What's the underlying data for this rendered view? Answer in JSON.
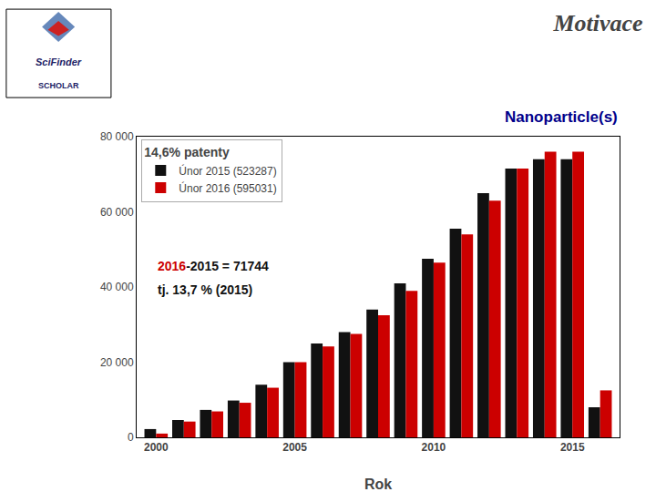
{
  "chart_data": {
    "type": "bar",
    "title": "Motivace",
    "subtitle": "Nanoparticle(s)",
    "x_label": "Rok",
    "legend_title": "14,6% patenty",
    "categories": [
      "2000",
      null,
      null,
      null,
      null,
      "2005",
      null,
      null,
      null,
      null,
      "2010",
      null,
      null,
      null,
      null,
      "2015",
      null
    ],
    "series": [
      {
        "name": "Únor 2015 (523287)",
        "color": "#111111",
        "values": [
          2200,
          4600,
          7300,
          9800,
          14000,
          20000,
          25000,
          28000,
          34000,
          41000,
          47500,
          55500,
          65000,
          71500,
          74000,
          74000,
          8000
        ]
      },
      {
        "name": "Únor 2016 (595031)",
        "color": "#cc0000",
        "values": [
          1000,
          4200,
          6900,
          9200,
          13200,
          20000,
          24200,
          27500,
          32500,
          39000,
          46500,
          54000,
          63000,
          71500,
          76000,
          76000,
          12500
        ]
      }
    ],
    "ylim": [
      0,
      80000
    ],
    "yticks": [
      0,
      {
        "value": 20000,
        "label": "20 000"
      },
      {
        "value": 40000,
        "label": "40 000"
      },
      {
        "value": 60000,
        "label": "60 000"
      },
      {
        "value": 80000,
        "label": "80 000"
      }
    ],
    "grid": false,
    "legend": "upper left",
    "annotations": [
      {
        "parts": [
          {
            "text": "2016",
            "color": "#cc0000"
          },
          {
            "text": "-2015 = 71744",
            "color": "#111111"
          }
        ]
      },
      {
        "parts": [
          {
            "text": "tj. 13,7 % (2015)",
            "color": "#111111"
          }
        ]
      }
    ],
    "logo_text": [
      "SciFinder",
      "SCHOLAR"
    ]
  }
}
